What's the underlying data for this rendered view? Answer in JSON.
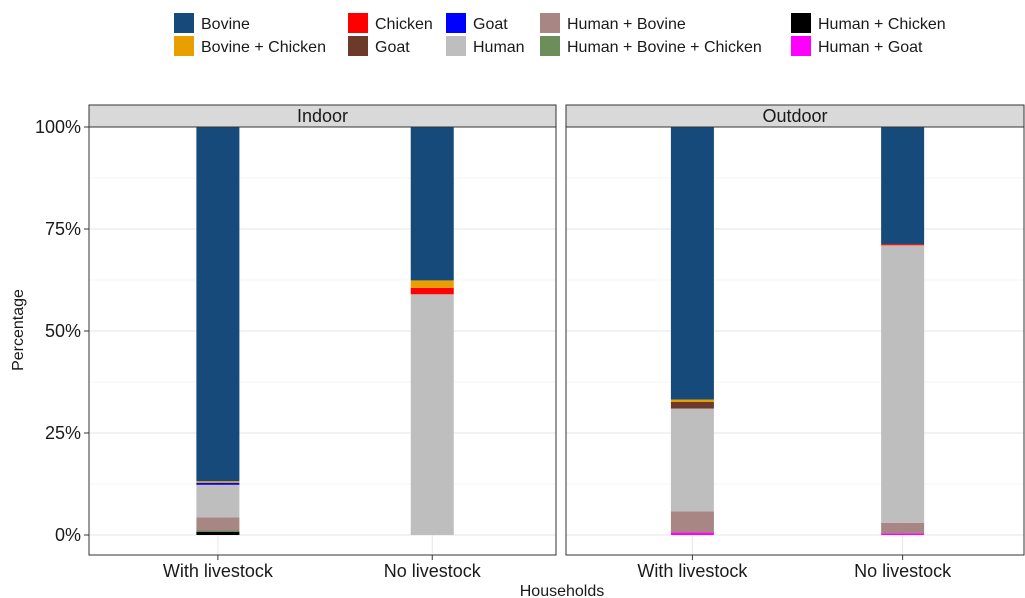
{
  "chart_data": {
    "type": "bar",
    "stacked": true,
    "xlabel": "Households",
    "ylabel": "Percentage",
    "ylim": [
      0,
      100
    ],
    "yticks": [
      "0%",
      "25%",
      "50%",
      "75%",
      "100%"
    ],
    "categories": [
      "With livestock",
      "No livestock"
    ],
    "facets": [
      "Indoor",
      "Outdoor"
    ],
    "grid": true,
    "legend_position": "top",
    "series": [
      {
        "name": "Human + Chicken",
        "color": "#000000",
        "values": {
          "Indoor": [
            0.8,
            0.0
          ],
          "Outdoor": [
            0.0,
            0.0
          ]
        }
      },
      {
        "name": "Human + Goat",
        "color": "#FF00FF",
        "values": {
          "Indoor": [
            0.0,
            0.0
          ],
          "Outdoor": [
            0.6,
            0.4
          ]
        }
      },
      {
        "name": "Human + Bovine + Chicken",
        "color": "#6B8E5A",
        "values": {
          "Indoor": [
            0.3,
            0.0
          ],
          "Outdoor": [
            0.0,
            0.0
          ]
        }
      },
      {
        "name": "Human + Bovine",
        "color": "#A88683",
        "values": {
          "Indoor": [
            3.2,
            0.0
          ],
          "Outdoor": [
            5.2,
            2.6
          ]
        }
      },
      {
        "name": "Human",
        "color": "#BEBEBE",
        "values": {
          "Indoor": [
            8.0,
            59.0
          ],
          "Outdoor": [
            25.2,
            68.0
          ]
        }
      },
      {
        "name": "Goat",
        "color": "#6B3A2A",
        "values": {
          "Indoor": [
            0.0,
            0.0
          ],
          "Outdoor": [
            1.6,
            0.0
          ]
        }
      },
      {
        "name": "Chicken",
        "color": "#FF0000",
        "values": {
          "Indoor": [
            0.0,
            1.6
          ],
          "Outdoor": [
            0.0,
            0.3
          ]
        }
      },
      {
        "name": "Goat",
        "color": "#0000FF",
        "values": {
          "Indoor": [
            0.5,
            0.0
          ],
          "Outdoor": [
            0.0,
            0.0
          ]
        }
      },
      {
        "name": "Bovine + Chicken",
        "color": "#E8A000",
        "values": {
          "Indoor": [
            0.4,
            1.8
          ],
          "Outdoor": [
            0.6,
            0.0
          ]
        }
      },
      {
        "name": "Bovine",
        "color": "#154A7A",
        "values": {
          "Indoor": [
            86.8,
            37.6
          ],
          "Outdoor": [
            66.8,
            28.7
          ]
        }
      }
    ],
    "legend": [
      {
        "label": "Bovine",
        "color": "#154A7A"
      },
      {
        "label": "Bovine + Chicken",
        "color": "#E8A000"
      },
      {
        "label": "Chicken",
        "color": "#FF0000"
      },
      {
        "label": "Goat",
        "color": "#6B3A2A"
      },
      {
        "label": "Goat",
        "color": "#0000FF"
      },
      {
        "label": "Human",
        "color": "#BEBEBE"
      },
      {
        "label": "Human + Bovine",
        "color": "#A88683"
      },
      {
        "label": "Human + Bovine + Chicken",
        "color": "#6B8E5A"
      },
      {
        "label": "Human + Chicken",
        "color": "#000000"
      },
      {
        "label": "Human + Goat",
        "color": "#FF00FF"
      }
    ]
  }
}
